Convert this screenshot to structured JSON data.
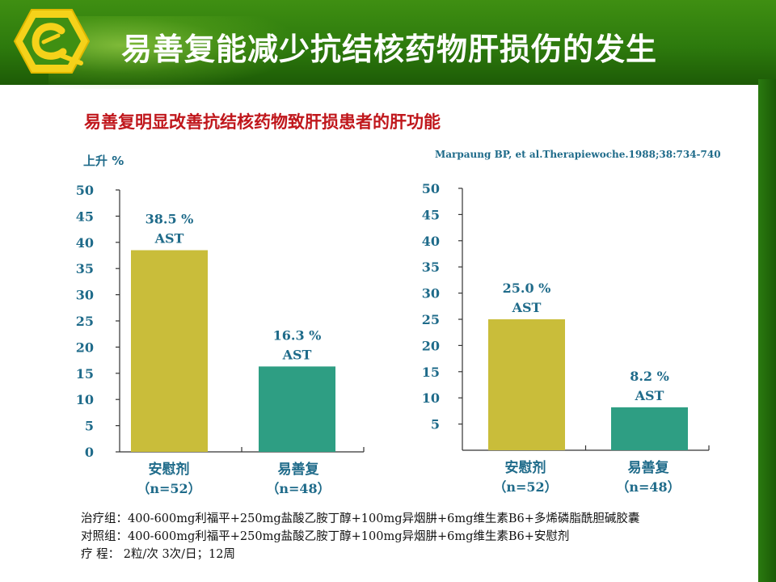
{
  "header": {
    "title": "易善复能减少抗结核药物肝损伤的发生"
  },
  "subtitle": "易善复明显改善抗结核药物致肝损患者的肝功能",
  "y_axis_label": "上升 %",
  "citation": "Marpaung BP, et al.Therapiewoche.1988;38:734-740",
  "colors": {
    "placebo": "#c9bd3a",
    "treatment": "#2e9e83",
    "label": "#1f6b8a",
    "subtitle": "#c0171c",
    "header": "#2d7a0d"
  },
  "chart_data": [
    {
      "type": "bar",
      "ylim": [
        0,
        50
      ],
      "yticks": [
        "0",
        "5",
        "10",
        "15",
        "20",
        "25",
        "30",
        "35",
        "40",
        "45",
        "50"
      ],
      "categories": [
        "安慰剂",
        "易善复"
      ],
      "category_sublabels": [
        "（n=52）",
        "（n=48）"
      ],
      "values": [
        38.5,
        16.3
      ],
      "value_labels": [
        "38.5 %",
        "16.3 %"
      ],
      "bar_labels": [
        "AST",
        "AST"
      ]
    },
    {
      "type": "bar",
      "ylim": [
        0,
        50
      ],
      "yticks": [
        "5",
        "10",
        "15",
        "20",
        "25",
        "30",
        "35",
        "40",
        "45",
        "50"
      ],
      "categories": [
        "安慰剂",
        "易善复"
      ],
      "category_sublabels": [
        "（n=52）",
        "（n=48）"
      ],
      "values": [
        25.0,
        8.2
      ],
      "value_labels": [
        "25.0 %",
        "8.2 %"
      ],
      "bar_labels": [
        "AST",
        "AST"
      ]
    }
  ],
  "notes": [
    "治疗组：400-600mg利福平+250mg盐酸乙胺丁醇+100mg异烟肼+6mg维生素B6+多烯磷脂酰胆碱胶囊",
    "对照组：400-600mg利福平+250mg盐酸乙胺丁醇+100mg异烟肼+6mg维生素B6+安慰剂",
    "疗  程： 2粒/次 3次/日；12周"
  ]
}
